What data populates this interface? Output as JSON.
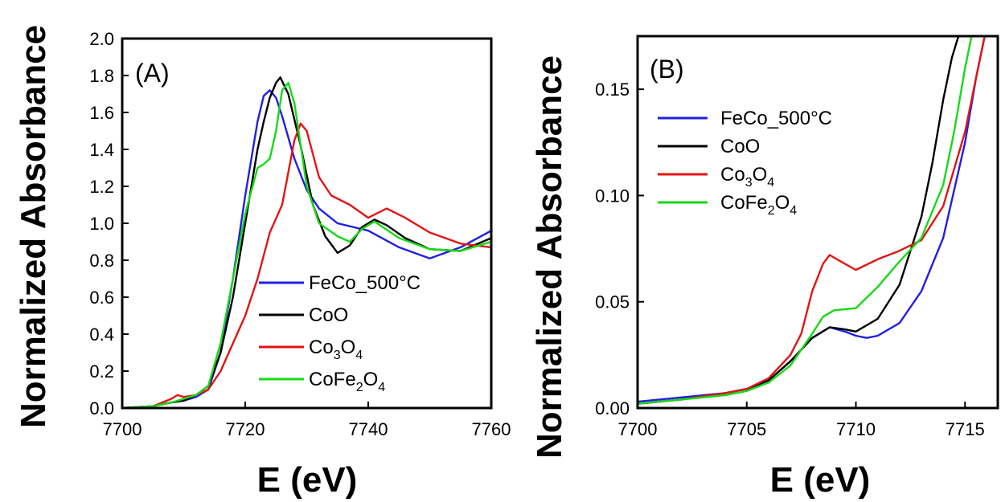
{
  "chart_data": [
    {
      "type": "line",
      "panel_label": "(A)",
      "xlabel": "E (eV)",
      "ylabel": "Normalized Absorbance",
      "xlim": [
        7700,
        7760
      ],
      "ylim": [
        0.0,
        2.0
      ],
      "xticks": [
        "7700",
        "7720",
        "7740",
        "7760"
      ],
      "yticks": [
        "0.0",
        "0.2",
        "0.4",
        "0.6",
        "0.8",
        "1.0",
        "1.2",
        "1.4",
        "1.6",
        "1.8",
        "2.0"
      ],
      "legend_position": "center-right",
      "series": [
        {
          "name": "FeCo_500°C",
          "color": "#1f1fe6",
          "x": [
            7700,
            7705,
            7708,
            7710,
            7712,
            7714,
            7716,
            7718,
            7720,
            7722,
            7723,
            7724,
            7725,
            7726,
            7728,
            7730,
            7732,
            7735,
            7740,
            7745,
            7750,
            7755,
            7760
          ],
          "y": [
            0.0,
            0.01,
            0.03,
            0.04,
            0.06,
            0.1,
            0.3,
            0.7,
            1.15,
            1.55,
            1.69,
            1.72,
            1.68,
            1.58,
            1.35,
            1.18,
            1.08,
            1.0,
            0.96,
            0.87,
            0.81,
            0.87,
            0.96
          ]
        },
        {
          "name": "CoO",
          "color": "#000000",
          "x": [
            7700,
            7705,
            7708,
            7710,
            7712,
            7714,
            7716,
            7718,
            7720,
            7722,
            7723,
            7724,
            7725,
            7725.7,
            7727,
            7729,
            7731,
            7733,
            7735,
            7737,
            7739,
            7741,
            7743,
            7746,
            7750,
            7755,
            7760
          ],
          "y": [
            0.0,
            0.01,
            0.03,
            0.04,
            0.07,
            0.12,
            0.3,
            0.6,
            1.0,
            1.4,
            1.55,
            1.68,
            1.76,
            1.79,
            1.7,
            1.42,
            1.1,
            0.93,
            0.84,
            0.88,
            0.98,
            1.02,
            0.99,
            0.92,
            0.86,
            0.85,
            0.92
          ]
        },
        {
          "name": "Co3O4",
          "color": "#e01515",
          "x": [
            7700,
            7705,
            7708,
            7709,
            7710,
            7712,
            7714,
            7716,
            7718,
            7720,
            7722,
            7724,
            7726,
            7728,
            7729,
            7730,
            7732,
            7734,
            7737,
            7740,
            7743,
            7746,
            7750,
            7755,
            7760
          ],
          "y": [
            0.0,
            0.01,
            0.05,
            0.07,
            0.06,
            0.07,
            0.1,
            0.2,
            0.35,
            0.5,
            0.7,
            0.95,
            1.1,
            1.45,
            1.54,
            1.5,
            1.25,
            1.15,
            1.1,
            1.03,
            1.08,
            1.03,
            0.95,
            0.89,
            0.87
          ]
        },
        {
          "name": "CoFe2O4",
          "color": "#16d916",
          "x": [
            7700,
            7705,
            7708,
            7710,
            7712,
            7714,
            7716,
            7718,
            7720,
            7722,
            7723,
            7724,
            7725,
            7726,
            7727,
            7728,
            7730,
            7732,
            7735,
            7737,
            7739,
            7741,
            7745,
            7750,
            7755,
            7760
          ],
          "y": [
            0.0,
            0.01,
            0.03,
            0.05,
            0.07,
            0.12,
            0.35,
            0.7,
            1.05,
            1.3,
            1.32,
            1.35,
            1.5,
            1.72,
            1.76,
            1.65,
            1.2,
            1.0,
            0.93,
            0.9,
            0.97,
            1.01,
            0.92,
            0.86,
            0.85,
            0.9
          ]
        }
      ]
    },
    {
      "type": "line",
      "panel_label": "(B)",
      "xlabel": "E (eV)",
      "ylabel": "Normalized Absorbance",
      "xlim": [
        7700,
        7716.5
      ],
      "ylim": [
        0.0,
        0.175
      ],
      "xticks": [
        "7700",
        "7705",
        "7710",
        "7715"
      ],
      "yticks": [
        "0.00",
        "0.05",
        "0.10",
        "0.15"
      ],
      "legend_position": "top-left",
      "series": [
        {
          "name": "FeCo_500°C",
          "color": "#1f1fe6",
          "x": [
            7700,
            7702,
            7704,
            7705,
            7706,
            7707,
            7708,
            7708.8,
            7709.5,
            7710,
            7710.5,
            7711,
            7712,
            7713,
            7714,
            7715,
            7715.5,
            7715.9
          ],
          "y": [
            0.003,
            0.005,
            0.007,
            0.009,
            0.013,
            0.022,
            0.033,
            0.038,
            0.036,
            0.034,
            0.033,
            0.034,
            0.04,
            0.055,
            0.08,
            0.125,
            0.155,
            0.175
          ]
        },
        {
          "name": "CoO",
          "color": "#000000",
          "x": [
            7700,
            7702,
            7704,
            7705,
            7706,
            7707,
            7708,
            7708.8,
            7709.5,
            7710,
            7711,
            7712,
            7713,
            7713.5,
            7714,
            7714.4,
            7714.7
          ],
          "y": [
            0.002,
            0.004,
            0.007,
            0.009,
            0.013,
            0.022,
            0.033,
            0.038,
            0.037,
            0.036,
            0.042,
            0.058,
            0.09,
            0.115,
            0.145,
            0.165,
            0.175
          ]
        },
        {
          "name": "Co3O4",
          "color": "#e01515",
          "x": [
            7700,
            7702,
            7704,
            7705,
            7706,
            7707,
            7707.5,
            7708,
            7708.5,
            7708.8,
            7709.3,
            7710,
            7711,
            7712,
            7713,
            7714,
            7715,
            7715.5,
            7715.9
          ],
          "y": [
            0.002,
            0.004,
            0.007,
            0.009,
            0.014,
            0.025,
            0.035,
            0.055,
            0.068,
            0.072,
            0.069,
            0.065,
            0.07,
            0.074,
            0.079,
            0.095,
            0.13,
            0.155,
            0.175
          ]
        },
        {
          "name": "CoFe2O4",
          "color": "#16d916",
          "x": [
            7700,
            7702,
            7704,
            7705,
            7706,
            7707,
            7708,
            7708.5,
            7709,
            7710,
            7711,
            7712,
            7713,
            7714,
            7714.5,
            7715,
            7715.3
          ],
          "y": [
            0.002,
            0.004,
            0.006,
            0.008,
            0.012,
            0.02,
            0.035,
            0.043,
            0.046,
            0.047,
            0.057,
            0.069,
            0.08,
            0.105,
            0.13,
            0.16,
            0.175
          ]
        }
      ]
    }
  ],
  "legend_labels": [
    {
      "main": "FeCo_500°C"
    },
    {
      "main": "CoO"
    },
    {
      "parts": [
        "Co",
        "3",
        "O",
        "4"
      ]
    },
    {
      "parts": [
        "CoFe",
        "2",
        "O",
        "4"
      ]
    }
  ]
}
